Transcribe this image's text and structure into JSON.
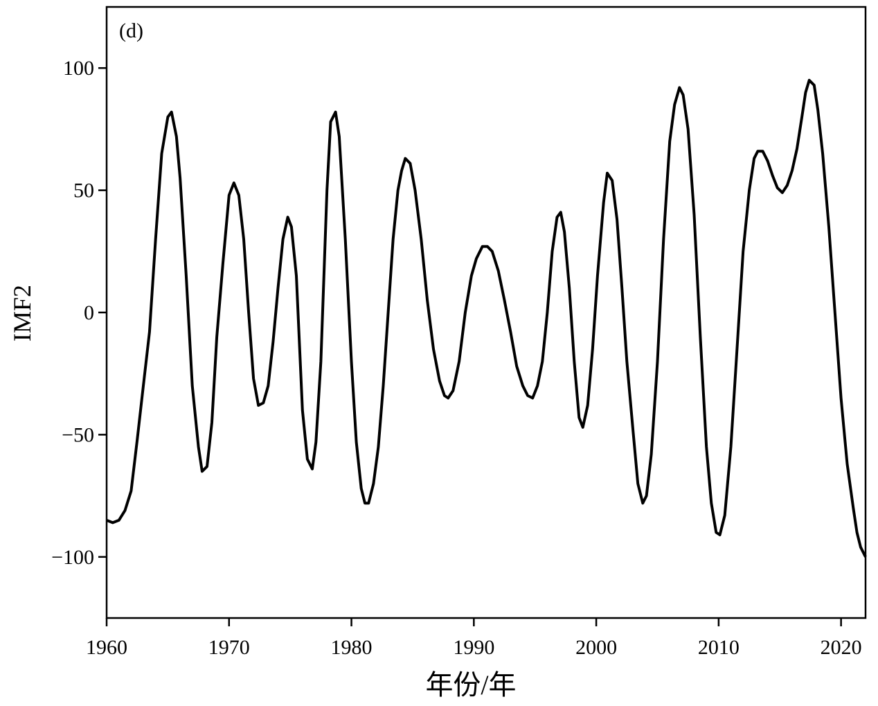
{
  "chart_data": {
    "type": "line",
    "annotation": "(d)",
    "x_label": "年份/年",
    "y_label": "IMF2",
    "x": [
      1960,
      1960.5,
      1961,
      1961.5,
      1962,
      1962.5,
      1963,
      1963.5,
      1964,
      1964.5,
      1965,
      1965.3,
      1965.7,
      1966,
      1966.5,
      1967,
      1967.5,
      1967.8,
      1968.2,
      1968.6,
      1969,
      1969.5,
      1970,
      1970.4,
      1970.8,
      1971.2,
      1971.6,
      1972,
      1972.4,
      1972.8,
      1973.2,
      1973.6,
      1974,
      1974.4,
      1974.8,
      1975.1,
      1975.5,
      1976,
      1976.4,
      1976.8,
      1977.1,
      1977.5,
      1978,
      1978.3,
      1978.7,
      1979,
      1979.5,
      1980,
      1980.4,
      1980.8,
      1981.1,
      1981.4,
      1981.8,
      1982.2,
      1982.6,
      1983,
      1983.4,
      1983.8,
      1984.1,
      1984.4,
      1984.8,
      1985.2,
      1985.7,
      1986.2,
      1986.7,
      1987.2,
      1987.6,
      1987.9,
      1988.3,
      1988.8,
      1989.3,
      1989.8,
      1990.2,
      1990.7,
      1991.1,
      1991.5,
      1992,
      1992.5,
      1993,
      1993.5,
      1994,
      1994.4,
      1994.8,
      1995.2,
      1995.6,
      1996,
      1996.4,
      1996.8,
      1997.1,
      1997.4,
      1997.8,
      1998.2,
      1998.6,
      1998.9,
      1999.3,
      1999.7,
      2000.1,
      2000.6,
      2000.9,
      2001.3,
      2001.7,
      2002.1,
      2002.5,
      2003,
      2003.4,
      2003.8,
      2004.1,
      2004.5,
      2005,
      2005.5,
      2006,
      2006.4,
      2006.8,
      2007.1,
      2007.5,
      2008,
      2008.5,
      2009,
      2009.4,
      2009.8,
      2010.1,
      2010.5,
      2011,
      2011.5,
      2012,
      2012.5,
      2012.9,
      2013.2,
      2013.6,
      2014,
      2014.4,
      2014.8,
      2015.2,
      2015.6,
      2016,
      2016.4,
      2016.8,
      2017.1,
      2017.4,
      2017.8,
      2018.1,
      2018.5,
      2019,
      2019.5,
      2020,
      2020.5,
      2021,
      2021.3,
      2021.6,
      2022
    ],
    "series": [
      {
        "color": "#000000",
        "values": [
          -85,
          -86,
          -85,
          -81,
          -73,
          -52,
          -30,
          -8,
          30,
          65,
          80,
          82,
          72,
          55,
          15,
          -30,
          -55,
          -65,
          -63,
          -45,
          -10,
          20,
          48,
          53,
          48,
          30,
          0,
          -27,
          -38,
          -37,
          -30,
          -12,
          10,
          30,
          39,
          35,
          15,
          -40,
          -60,
          -64,
          -53,
          -20,
          50,
          78,
          82,
          72,
          30,
          -20,
          -53,
          -72,
          -78,
          -78,
          -70,
          -55,
          -30,
          0,
          30,
          50,
          58,
          63,
          61,
          50,
          30,
          5,
          -15,
          -28,
          -34,
          -35,
          -32,
          -20,
          0,
          15,
          22,
          27,
          27,
          25,
          17,
          5,
          -8,
          -22,
          -30,
          -34,
          -35,
          -30,
          -20,
          0,
          25,
          39,
          41,
          33,
          10,
          -20,
          -43,
          -47,
          -38,
          -15,
          15,
          45,
          57,
          54,
          38,
          10,
          -20,
          -48,
          -70,
          -78,
          -75,
          -58,
          -20,
          30,
          70,
          85,
          92,
          89,
          75,
          40,
          -10,
          -55,
          -78,
          -90,
          -91,
          -83,
          -55,
          -15,
          25,
          50,
          63,
          66,
          66,
          62,
          56,
          51,
          49,
          52,
          58,
          67,
          80,
          90,
          95,
          93,
          83,
          65,
          35,
          0,
          -35,
          -62,
          -80,
          -90,
          -96,
          -100
        ]
      }
    ],
    "xlim": [
      1960,
      2022
    ],
    "xticks": [
      1960,
      1970,
      1980,
      1990,
      2000,
      2010,
      2020
    ],
    "ylim": [
      -125,
      125
    ],
    "yticks": [
      {
        "value": -100,
        "label": "−100"
      },
      {
        "value": -50,
        "label": "−50"
      },
      0,
      50,
      100
    ]
  }
}
